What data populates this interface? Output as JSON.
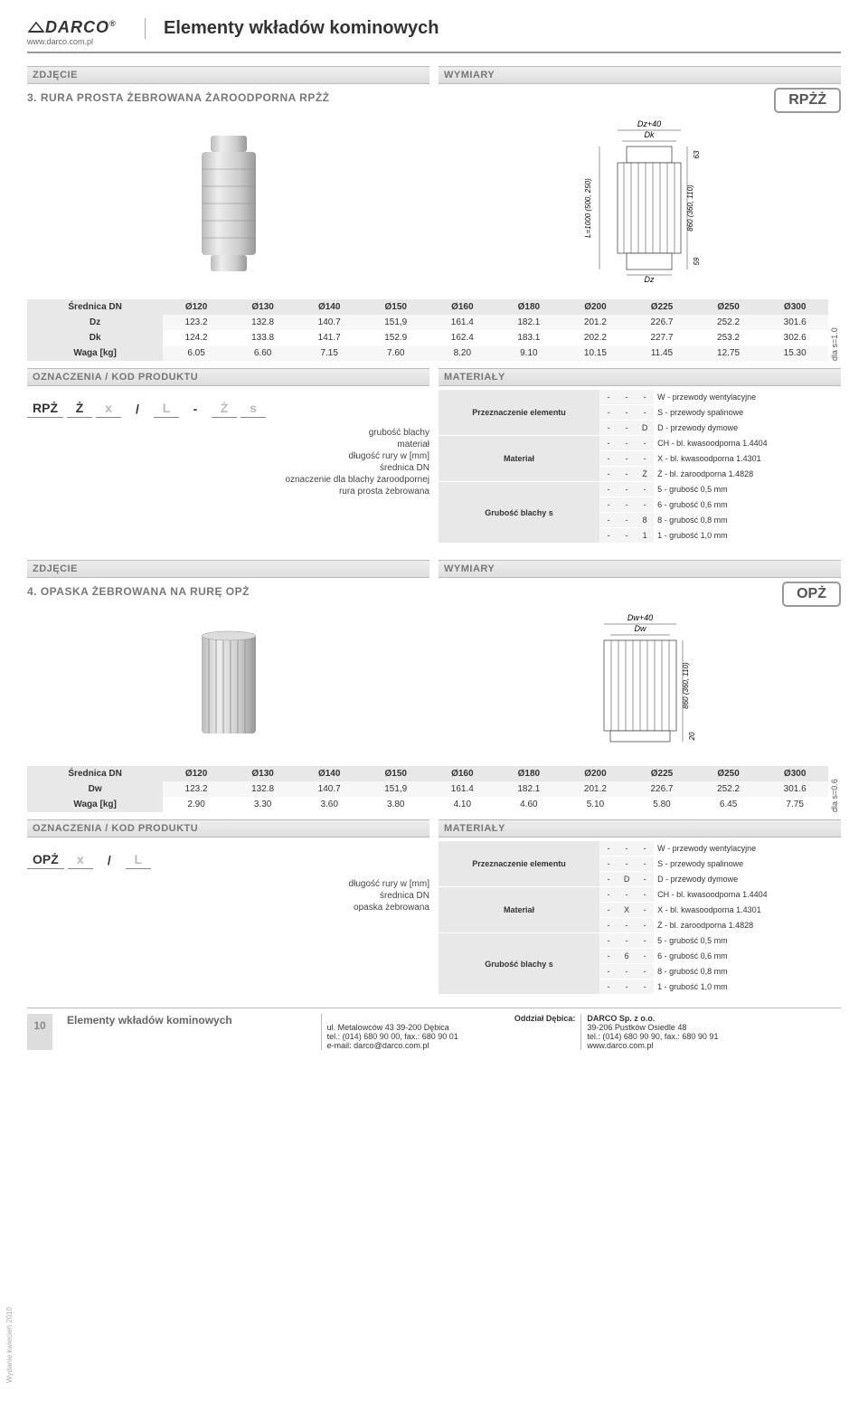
{
  "header": {
    "logo": "DARCO",
    "logo_reg": "®",
    "url": "www.darco.com.pl",
    "title": "Elementy wkładów kominowych"
  },
  "labels": {
    "zdjecie": "ZDJĘCIE",
    "wymiary": "WYMIARY",
    "oznaczenia": "OZNACZENIA / KOD PRODUKTU",
    "materialy": "MATERIAŁY"
  },
  "product1": {
    "title": "3. RURA PROSTA ŻEBROWANA ŻAROODPORNA RPŻŻ",
    "code": "RPŻŻ",
    "dim_labels": {
      "top1": "Dz+40",
      "top2": "Dk",
      "bot": "Dz",
      "l": "L=1000 (500, 250)",
      "h1": "63",
      "h2": "860 (360, 110)",
      "h3": "59"
    },
    "table": {
      "side": "dla s=1.0",
      "header": [
        "Średnica DN",
        "Ø120",
        "Ø130",
        "Ø140",
        "Ø150",
        "Ø160",
        "Ø180",
        "Ø200",
        "Ø225",
        "Ø250",
        "Ø300"
      ],
      "rows": [
        [
          "Dz",
          "123.2",
          "132.8",
          "140.7",
          "151,9",
          "161.4",
          "182.1",
          "201.2",
          "226.7",
          "252.2",
          "301.6"
        ],
        [
          "Dk",
          "124.2",
          "133.8",
          "141.7",
          "152.9",
          "162.4",
          "183.1",
          "202.2",
          "227.7",
          "253.2",
          "302.6"
        ],
        [
          "Waga [kg]",
          "6.05",
          "6.60",
          "7.15",
          "7.60",
          "8.20",
          "9.10",
          "10.15",
          "11.45",
          "12.75",
          "15.30"
        ]
      ]
    },
    "schema": {
      "parts": [
        "RPŻ",
        "Ż",
        "x",
        "/",
        "L",
        "-",
        "Ż",
        "s"
      ],
      "gray": [
        false,
        false,
        true,
        false,
        true,
        false,
        true,
        true
      ],
      "legend": [
        "grubość blachy",
        "materiał",
        "długość rury w [mm]",
        "średnica DN",
        "oznaczenie dla blachy żaroodpornej",
        "rura prosta żebrowana"
      ]
    },
    "materials": {
      "groups": [
        {
          "h": "Przeznaczenie elementu",
          "rows": [
            {
              "c": [
                "-",
                "-",
                "-"
              ],
              "d": "W - przewody wentylacyjne"
            },
            {
              "c": [
                "-",
                "-",
                "-"
              ],
              "d": "S  - przewody spalinowe"
            },
            {
              "c": [
                "-",
                "-",
                "D"
              ],
              "d": "D  - przewody dymowe"
            }
          ]
        },
        {
          "h": "Materiał",
          "rows": [
            {
              "c": [
                "-",
                "-",
                "-"
              ],
              "d": "CH - bl. kwasoodporna  1.4404"
            },
            {
              "c": [
                "-",
                "-",
                "-"
              ],
              "d": "X   - bl. kwasoodporna  1.4301"
            },
            {
              "c": [
                "-",
                "-",
                "Ż"
              ],
              "d": "Ż   - bl. żaroodporna     1.4828"
            }
          ]
        },
        {
          "h": "Grubość blachy s",
          "rows": [
            {
              "c": [
                "-",
                "-",
                "-"
              ],
              "d": "5 - grubość 0,5 mm"
            },
            {
              "c": [
                "-",
                "-",
                "-"
              ],
              "d": "6 - grubość 0,6 mm"
            },
            {
              "c": [
                "-",
                "-",
                "8"
              ],
              "d": "8 - grubość 0,8 mm"
            },
            {
              "c": [
                "-",
                "-",
                "1"
              ],
              "d": "1 - grubość 1,0 mm"
            }
          ]
        }
      ]
    }
  },
  "product2": {
    "title": "4. OPASKA ŻEBROWANA NA RURĘ OPŻ",
    "code": "OPŻ",
    "dim_labels": {
      "top1": "Dw+40",
      "top2": "Dw",
      "h2": "860 (360, 110)",
      "h3": "20"
    },
    "table": {
      "side": "dla s=0.6",
      "header": [
        "Średnica DN",
        "Ø120",
        "Ø130",
        "Ø140",
        "Ø150",
        "Ø160",
        "Ø180",
        "Ø200",
        "Ø225",
        "Ø250",
        "Ø300"
      ],
      "rows": [
        [
          "Dw",
          "123.2",
          "132.8",
          "140.7",
          "151,9",
          "161.4",
          "182.1",
          "201.2",
          "226.7",
          "252.2",
          "301.6"
        ],
        [
          "Waga [kg]",
          "2.90",
          "3.30",
          "3.60",
          "3.80",
          "4.10",
          "4.60",
          "5.10",
          "5.80",
          "6.45",
          "7.75"
        ]
      ]
    },
    "schema": {
      "parts": [
        "OPŻ",
        "x",
        "/",
        "L"
      ],
      "gray": [
        false,
        true,
        false,
        true
      ],
      "legend": [
        "długość rury w [mm]",
        "średnica DN",
        "opaska żebrowana"
      ]
    },
    "materials": {
      "groups": [
        {
          "h": "Przeznaczenie elementu",
          "rows": [
            {
              "c": [
                "-",
                "-",
                "-"
              ],
              "d": "W - przewody wentylacyjne"
            },
            {
              "c": [
                "-",
                "-",
                "-"
              ],
              "d": "S  - przewody spalinowe"
            },
            {
              "c": [
                "-",
                "D",
                "-"
              ],
              "d": "D  - przewody dymowe"
            }
          ]
        },
        {
          "h": "Materiał",
          "rows": [
            {
              "c": [
                "-",
                "-",
                "-"
              ],
              "d": "CH - bl. kwasoodporna  1.4404"
            },
            {
              "c": [
                "-",
                "X",
                "-"
              ],
              "d": "X   - bl. kwasoodporna  1.4301"
            },
            {
              "c": [
                "-",
                "-",
                "-"
              ],
              "d": "Ż   - bl. żaroodporna     1.4828"
            }
          ]
        },
        {
          "h": "Grubość blachy s",
          "rows": [
            {
              "c": [
                "-",
                "-",
                "-"
              ],
              "d": "5 - grubość 0,5 mm"
            },
            {
              "c": [
                "-",
                "6",
                "-"
              ],
              "d": "6 - grubość 0,6 mm"
            },
            {
              "c": [
                "-",
                "-",
                "-"
              ],
              "d": "8 - grubość 0,8 mm"
            },
            {
              "c": [
                "-",
                "-",
                "-"
              ],
              "d": "1 - grubość 1,0 mm"
            }
          ]
        }
      ]
    }
  },
  "footer": {
    "page": "10",
    "title": "Elementy wkładów kominowych",
    "addr1": {
      "l1": "Oddział Dębica:",
      "l2": "ul. Metalowców 43     39-200 Dębica",
      "l3": "tel.: (014) 680 90 00, fax.: 680 90 01",
      "l4": "e-mail: darco@darco.com.pl"
    },
    "addr2": {
      "l1": "DARCO Sp. z o.o.",
      "l2": "39-206 Pustków Osiedle 48",
      "l3": "tel.: (014) 680 90 90, fax.: 680 90 91",
      "l4": "www.darco.com.pl"
    },
    "side_date": "Wydanie kwiecień 2010"
  },
  "colors": {
    "bar_bg": "#e6e6e6",
    "header_bg": "#e8e8e8",
    "border": "#999999"
  }
}
